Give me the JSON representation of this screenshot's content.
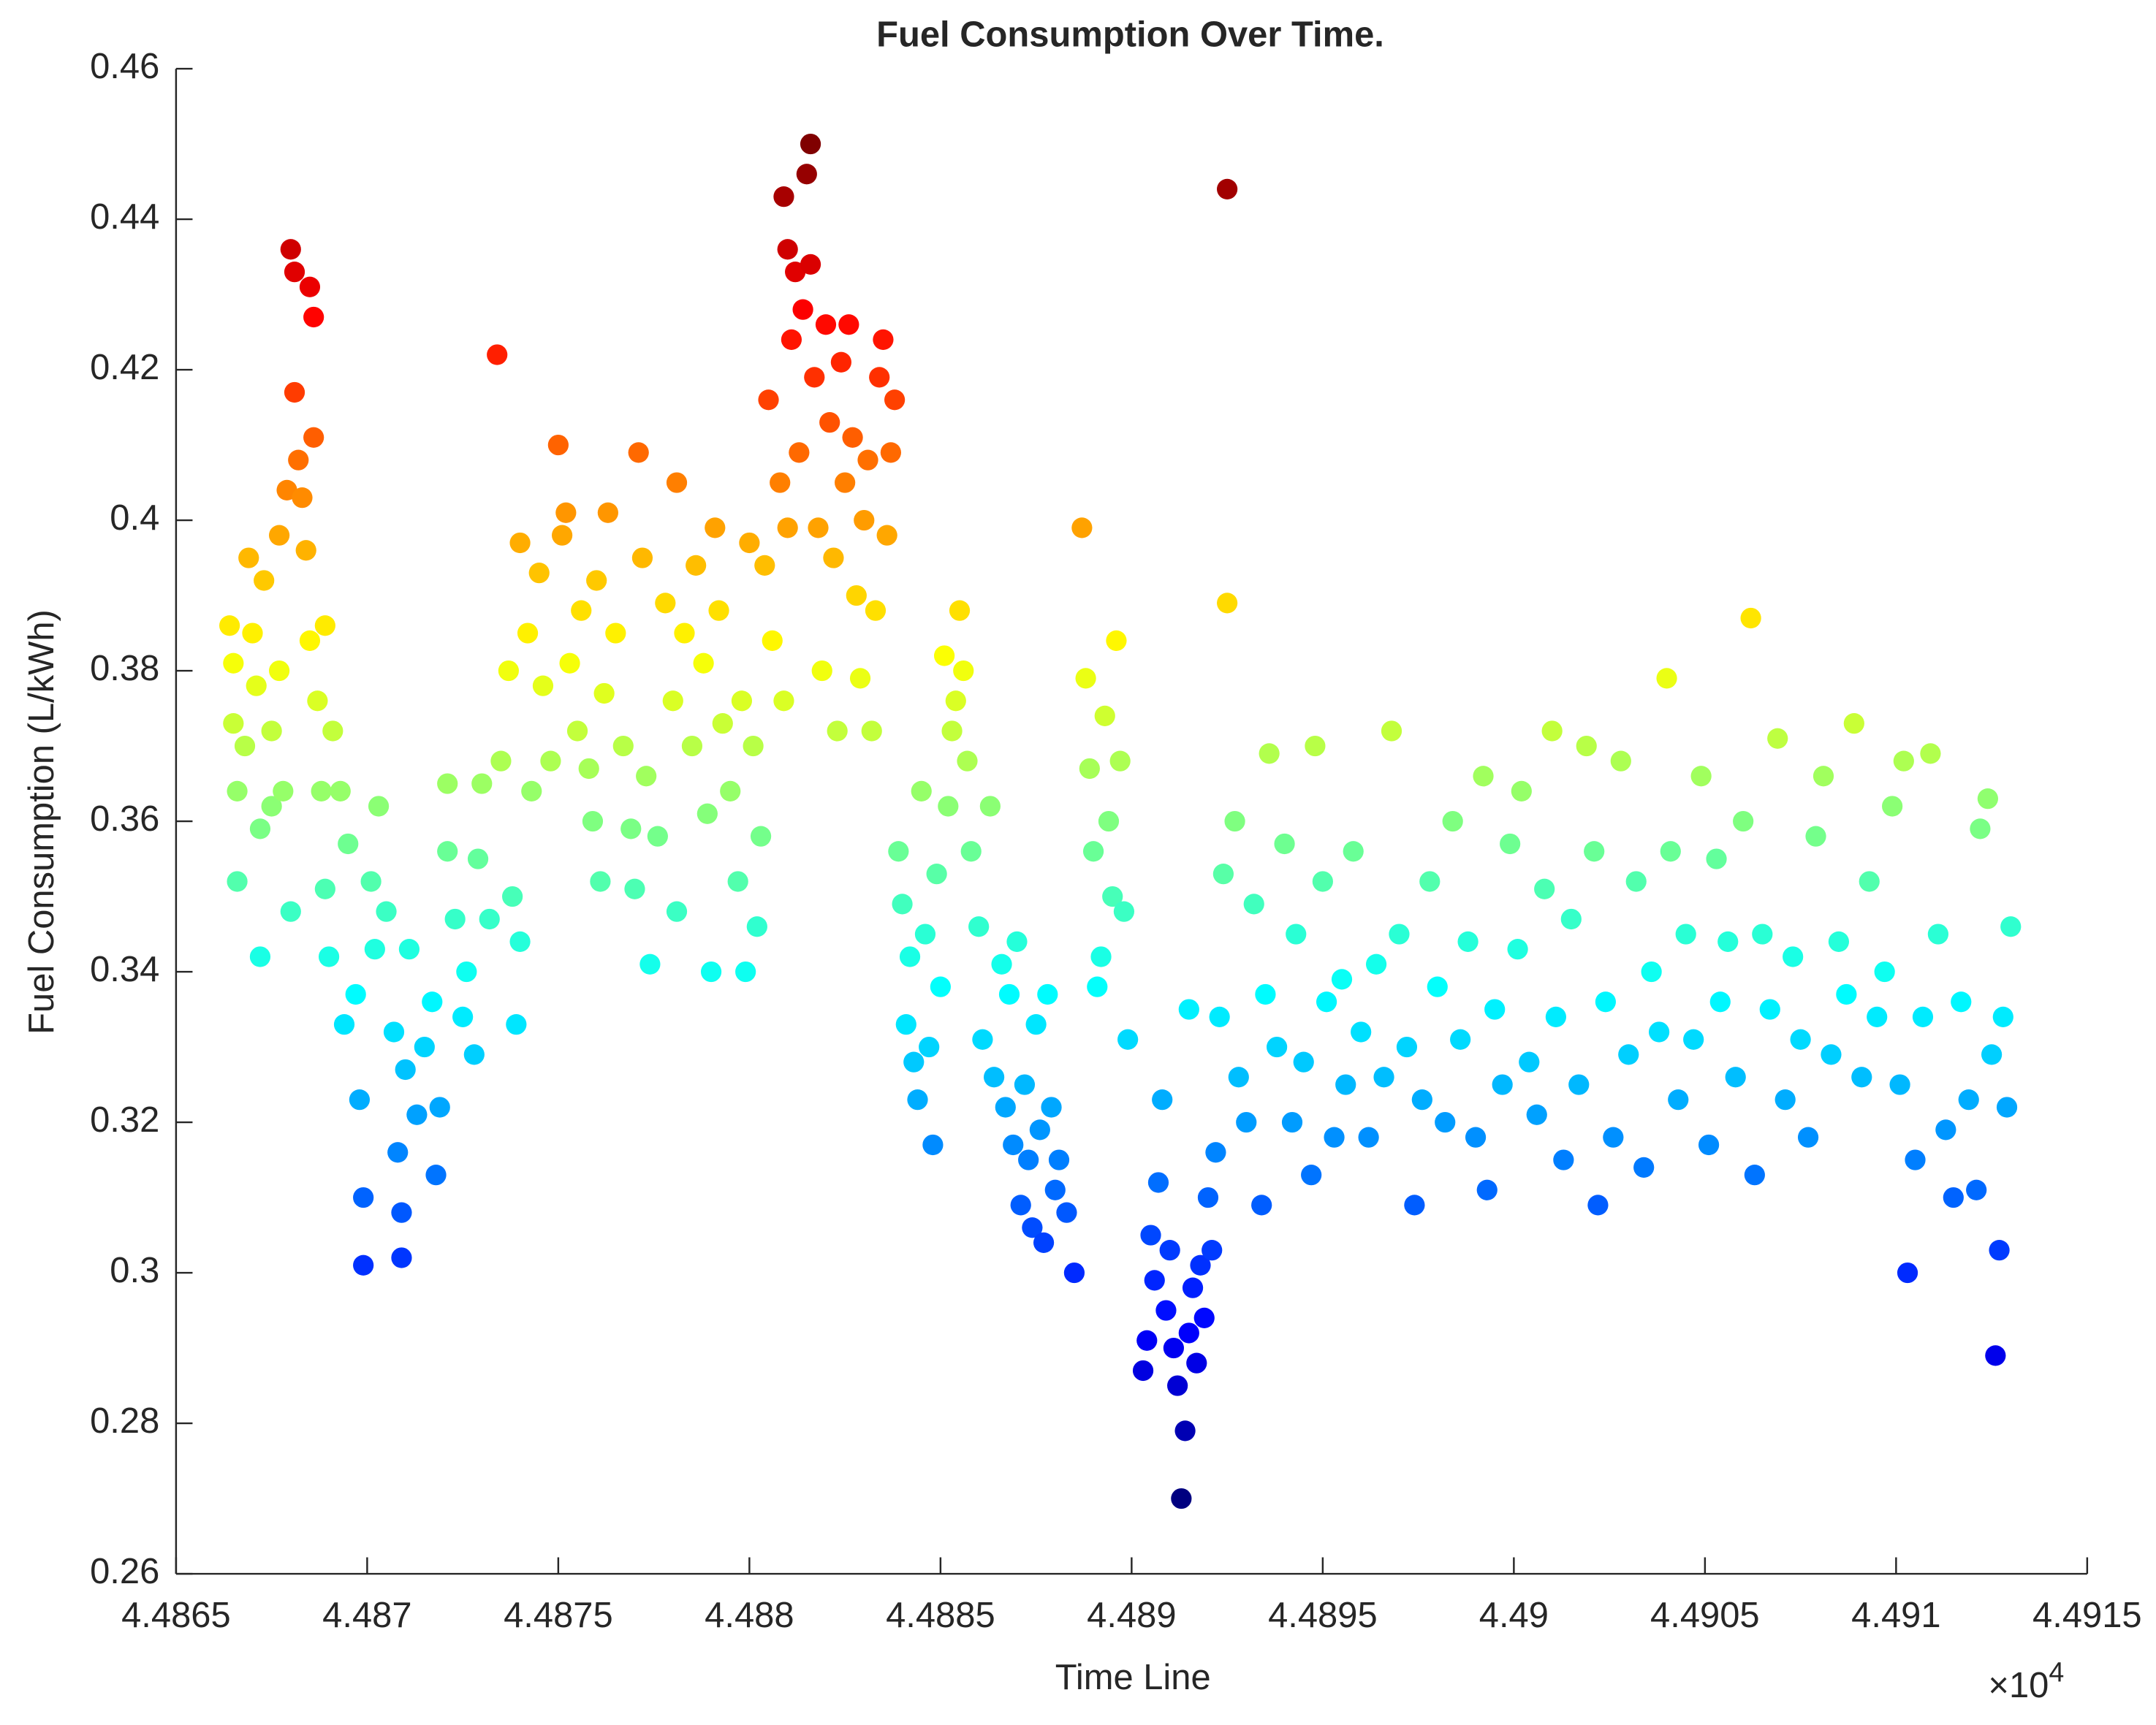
{
  "chart_data": {
    "type": "scatter",
    "title": "Fuel Consumption Over Time.",
    "x_label": "Time Line",
    "y_label": "Fuel Consumption (L/kWh)",
    "x_exponent_base": "×10",
    "x_exponent": "4",
    "colormap": "jet",
    "xlim": [
      44865,
      44915
    ],
    "xticks": [
      {
        "value": 44865,
        "label": "4.4865"
      },
      {
        "value": 44870,
        "label": "4.487"
      },
      {
        "value": 44875,
        "label": "4.4875"
      },
      {
        "value": 44880,
        "label": "4.488"
      },
      {
        "value": 44885,
        "label": "4.4885"
      },
      {
        "value": 44890,
        "label": "4.489"
      },
      {
        "value": 44895,
        "label": "4.4895"
      },
      {
        "value": 44900,
        "label": "4.49"
      },
      {
        "value": 44905,
        "label": "4.4905"
      },
      {
        "value": 44910,
        "label": "4.491"
      },
      {
        "value": 44915,
        "label": "4.4915"
      }
    ],
    "ylim": [
      0.26,
      0.46
    ],
    "yticks": [
      0.26,
      0.28,
      0.3,
      0.32,
      0.34,
      0.36,
      0.38,
      0.4,
      0.42,
      0.44,
      0.46
    ],
    "grid": false,
    "x": [
      44866.4,
      44866.5,
      44866.5,
      44866.6,
      44866.6,
      44866.8,
      44866.9,
      44867.0,
      44867.1,
      44867.2,
      44867.2,
      44867.3,
      44867.5,
      44867.5,
      44867.7,
      44867.7,
      44867.8,
      44867.9,
      44868.0,
      44868.0,
      44868.1,
      44868.1,
      44868.2,
      44868.3,
      44868.4,
      44868.5,
      44868.6,
      44868.6,
      44868.5,
      44868.7,
      44868.8,
      44868.9,
      44868.9,
      44869.0,
      44869.1,
      44869.3,
      44869.4,
      44869.5,
      44869.7,
      44869.8,
      44869.9,
      44869.9,
      44870.1,
      44870.2,
      44870.3,
      44870.5,
      44870.7,
      44870.8,
      44870.9,
      44870.9,
      44871.0,
      44871.1,
      44871.3,
      44871.5,
      44871.7,
      44871.8,
      44871.9,
      44872.1,
      44872.1,
      44872.3,
      44872.5,
      44872.6,
      44872.8,
      44872.9,
      44873.0,
      44873.2,
      44873.4,
      44873.5,
      44873.7,
      44873.8,
      44873.9,
      44874.0,
      44874.0,
      44874.2,
      44874.3,
      44874.5,
      44874.6,
      44874.8,
      44875.0,
      44875.1,
      44875.2,
      44875.3,
      44875.5,
      44875.6,
      44875.8,
      44875.9,
      44876.0,
      44876.1,
      44876.2,
      44876.3,
      44876.5,
      44876.7,
      44876.9,
      44877.0,
      44877.1,
      44877.2,
      44877.3,
      44877.4,
      44877.6,
      44877.8,
      44878.0,
      44878.1,
      44878.1,
      44878.3,
      44878.5,
      44878.6,
      44878.8,
      44878.9,
      44879.0,
      44879.1,
      44879.2,
      44879.3,
      44879.5,
      44879.7,
      44879.8,
      44879.9,
      44880.0,
      44880.1,
      44880.2,
      44880.3,
      44880.4,
      44880.5,
      44880.6,
      44880.8,
      44880.9,
      44880.9,
      44881.0,
      44881.0,
      44881.1,
      44881.2,
      44881.3,
      44881.4,
      44881.5,
      44881.6,
      44881.6,
      44881.7,
      44881.8,
      44881.9,
      44882.0,
      44882.1,
      44882.2,
      44882.3,
      44882.4,
      44882.5,
      44882.6,
      44882.7,
      44882.8,
      44882.9,
      44883.0,
      44883.1,
      44883.2,
      44883.3,
      44883.4,
      44883.5,
      44883.6,
      44883.7,
      44883.8,
      44883.9,
      44884.0,
      44884.1,
      44884.2,
      44884.3,
      44884.4,
      44884.5,
      44884.6,
      44884.7,
      44884.8,
      44884.9,
      44885.0,
      44885.1,
      44885.2,
      44885.3,
      44885.4,
      44885.5,
      44885.6,
      44885.7,
      44885.8,
      44886.0,
      44886.1,
      44886.3,
      44886.4,
      44886.6,
      44886.7,
      44886.8,
      44886.9,
      44887.0,
      44887.1,
      44887.2,
      44887.3,
      44887.4,
      44887.5,
      44887.6,
      44887.7,
      44887.8,
      44887.9,
      44888.0,
      44888.1,
      44888.3,
      44888.5,
      44888.7,
      44888.8,
      44888.9,
      44889.0,
      44889.1,
      44889.2,
      44889.3,
      44889.4,
      44889.5,
      44889.6,
      44889.7,
      44889.8,
      44889.9,
      44890.3,
      44890.4,
      44890.5,
      44890.6,
      44890.7,
      44890.8,
      44890.9,
      44891.0,
      44891.1,
      44891.2,
      44891.3,
      44891.4,
      44891.5,
      44891.5,
      44891.6,
      44891.7,
      44891.8,
      44891.9,
      44892.0,
      44892.1,
      44892.2,
      44892.3,
      44892.5,
      44892.5,
      44892.4,
      44892.7,
      44892.8,
      44893.0,
      44893.2,
      44893.4,
      44893.5,
      44893.6,
      44893.8,
      44894.0,
      44894.2,
      44894.3,
      44894.5,
      44894.7,
      44894.8,
      44895.0,
      44895.1,
      44895.3,
      44895.5,
      44895.6,
      44895.8,
      44896.0,
      44896.2,
      44896.4,
      44896.6,
      44896.8,
      44897.0,
      44897.2,
      44897.4,
      44897.6,
      44897.8,
      44898.0,
      44898.2,
      44898.4,
      44898.6,
      44898.8,
      44899.0,
      44899.2,
      44899.3,
      44899.5,
      44899.7,
      44899.9,
      44900.1,
      44900.2,
      44900.4,
      44900.6,
      44900.8,
      44901.0,
      44901.1,
      44901.3,
      44901.5,
      44901.7,
      44901.9,
      44902.1,
      44902.2,
      44902.4,
      44902.6,
      44902.8,
      44903.0,
      44903.2,
      44903.4,
      44903.6,
      44903.8,
      44904.0,
      44904.1,
      44904.3,
      44904.5,
      44904.7,
      44904.9,
      44905.1,
      44905.3,
      44905.4,
      44905.6,
      44905.8,
      44906.0,
      44906.2,
      44906.3,
      44906.5,
      44906.7,
      44906.9,
      44907.1,
      44907.3,
      44907.5,
      44907.7,
      44907.9,
      44908.1,
      44908.3,
      44908.5,
      44908.7,
      44908.9,
      44909.1,
      44909.3,
      44909.5,
      44909.7,
      44909.9,
      44910.1,
      44910.2,
      44910.3,
      44910.5,
      44910.7,
      44910.9,
      44911.1,
      44911.3,
      44911.5,
      44911.7,
      44911.9,
      44912.1,
      44912.2,
      44912.4,
      44912.5,
      44912.6,
      44912.7,
      44912.8,
      44913.0,
      44912.9
    ],
    "values": [
      0.386,
      0.381,
      0.373,
      0.364,
      0.352,
      0.37,
      0.395,
      0.385,
      0.378,
      0.359,
      0.342,
      0.392,
      0.372,
      0.362,
      0.398,
      0.38,
      0.364,
      0.404,
      0.348,
      0.436,
      0.433,
      0.417,
      0.408,
      0.403,
      0.396,
      0.431,
      0.427,
      0.411,
      0.384,
      0.376,
      0.364,
      0.386,
      0.351,
      0.342,
      0.372,
      0.364,
      0.333,
      0.357,
      0.337,
      0.323,
      0.31,
      0.301,
      0.352,
      0.343,
      0.362,
      0.348,
      0.332,
      0.316,
      0.302,
      0.308,
      0.327,
      0.343,
      0.321,
      0.33,
      0.336,
      0.313,
      0.322,
      0.356,
      0.365,
      0.347,
      0.334,
      0.34,
      0.329,
      0.355,
      0.365,
      0.347,
      0.422,
      0.368,
      0.38,
      0.35,
      0.333,
      0.397,
      0.344,
      0.385,
      0.364,
      0.393,
      0.378,
      0.368,
      0.41,
      0.398,
      0.401,
      0.381,
      0.372,
      0.388,
      0.367,
      0.36,
      0.392,
      0.352,
      0.377,
      0.401,
      0.385,
      0.37,
      0.359,
      0.351,
      0.409,
      0.395,
      0.366,
      0.341,
      0.358,
      0.389,
      0.376,
      0.405,
      0.348,
      0.385,
      0.37,
      0.394,
      0.381,
      0.361,
      0.34,
      0.399,
      0.388,
      0.373,
      0.364,
      0.352,
      0.376,
      0.34,
      0.397,
      0.37,
      0.346,
      0.358,
      0.394,
      0.416,
      0.384,
      0.405,
      0.443,
      0.376,
      0.436,
      0.399,
      0.424,
      0.433,
      0.409,
      0.428,
      0.446,
      0.45,
      0.434,
      0.419,
      0.399,
      0.38,
      0.426,
      0.413,
      0.395,
      0.372,
      0.421,
      0.405,
      0.426,
      0.411,
      0.39,
      0.379,
      0.4,
      0.408,
      0.372,
      0.388,
      0.419,
      0.424,
      0.398,
      0.409,
      0.416,
      0.356,
      0.349,
      0.333,
      0.342,
      0.328,
      0.323,
      0.364,
      0.345,
      0.33,
      0.317,
      0.353,
      0.338,
      0.382,
      0.362,
      0.372,
      0.376,
      0.388,
      0.38,
      0.368,
      0.356,
      0.346,
      0.331,
      0.362,
      0.326,
      0.341,
      0.322,
      0.337,
      0.317,
      0.344,
      0.309,
      0.325,
      0.315,
      0.306,
      0.333,
      0.319,
      0.304,
      0.337,
      0.322,
      0.311,
      0.315,
      0.308,
      0.3,
      0.399,
      0.379,
      0.367,
      0.356,
      0.338,
      0.342,
      0.374,
      0.36,
      0.35,
      0.384,
      0.368,
      0.348,
      0.331,
      0.287,
      0.291,
      0.305,
      0.299,
      0.312,
      0.323,
      0.295,
      0.303,
      0.29,
      0.285,
      0.27,
      0.279,
      0.292,
      0.335,
      0.298,
      0.288,
      0.301,
      0.294,
      0.31,
      0.303,
      0.316,
      0.334,
      0.444,
      0.389,
      0.353,
      0.36,
      0.326,
      0.32,
      0.349,
      0.309,
      0.337,
      0.369,
      0.33,
      0.357,
      0.32,
      0.345,
      0.328,
      0.313,
      0.37,
      0.352,
      0.336,
      0.318,
      0.339,
      0.325,
      0.356,
      0.332,
      0.318,
      0.341,
      0.326,
      0.372,
      0.345,
      0.33,
      0.309,
      0.323,
      0.352,
      0.338,
      0.32,
      0.36,
      0.331,
      0.344,
      0.318,
      0.366,
      0.311,
      0.335,
      0.325,
      0.357,
      0.343,
      0.364,
      0.328,
      0.321,
      0.351,
      0.372,
      0.334,
      0.315,
      0.347,
      0.325,
      0.37,
      0.356,
      0.309,
      0.336,
      0.318,
      0.368,
      0.329,
      0.352,
      0.314,
      0.34,
      0.332,
      0.379,
      0.356,
      0.323,
      0.345,
      0.331,
      0.366,
      0.317,
      0.355,
      0.336,
      0.344,
      0.326,
      0.36,
      0.387,
      0.313,
      0.345,
      0.335,
      0.371,
      0.323,
      0.342,
      0.331,
      0.318,
      0.358,
      0.366,
      0.329,
      0.344,
      0.337,
      0.373,
      0.326,
      0.352,
      0.334,
      0.34,
      0.362,
      0.325,
      0.368,
      0.3,
      0.315,
      0.334,
      0.369,
      0.345,
      0.319,
      0.31,
      0.336,
      0.323,
      0.311,
      0.359,
      0.363,
      0.329,
      0.289,
      0.303,
      0.334,
      0.346,
      0.322
    ]
  }
}
